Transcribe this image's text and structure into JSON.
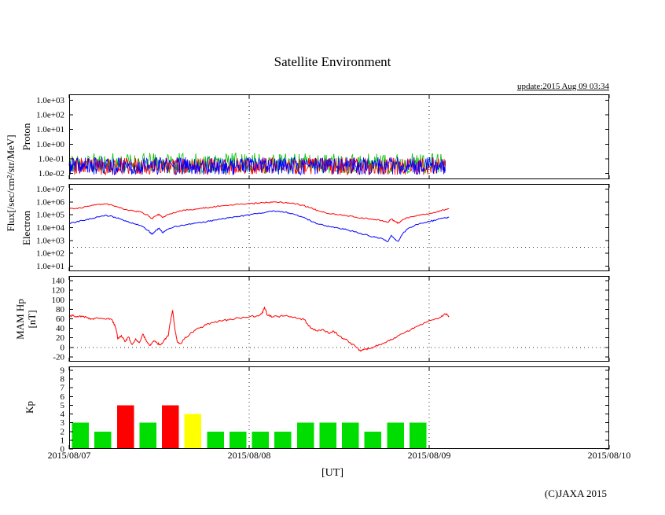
{
  "page": {
    "title": "Satellite Environment",
    "update_label": "update:2015 Aug 09 03:34",
    "copyright": "(C)JAXA 2015",
    "xlabel": "[UT]"
  },
  "axes": {
    "flux_label": "Flux[/sec/cm²/str/MeV]",
    "x_ticks": [
      "2015/08/07",
      "2015/08/08",
      "2015/08/09",
      "2015/08/10"
    ],
    "x_span_days": 3
  },
  "chart_data": [
    {
      "name": "proton",
      "type": "line",
      "ylabel": "Proton",
      "yscale": "log",
      "ylim_exp": [
        -2.4,
        3.4
      ],
      "yticks": [
        {
          "v": 1000,
          "label": "1.0e+03"
        },
        {
          "v": 100,
          "label": "1.0e+02"
        },
        {
          "v": 10,
          "label": "1.0e+01"
        },
        {
          "v": 1,
          "label": "1.0e+00"
        },
        {
          "v": 0.1,
          "label": "1.0e-01"
        },
        {
          "v": 0.01,
          "label": "1.0e-02"
        }
      ],
      "vgrid_days": [
        1,
        2
      ],
      "hgrid": [],
      "series": [
        {
          "name": "proton-green-channel",
          "color": "#00c000",
          "noise": {
            "t_range": [
              0,
              2.09
            ],
            "v_range": [
              0.01,
              0.25
            ],
            "n": 500,
            "seed": 11
          }
        },
        {
          "name": "proton-red-channel",
          "color": "#ff0000",
          "noise": {
            "t_range": [
              0,
              2.09
            ],
            "v_range": [
              0.008,
              0.12
            ],
            "n": 620,
            "seed": 23
          }
        },
        {
          "name": "proton-blue-channel",
          "color": "#0000ff",
          "noise": {
            "t_range": [
              0,
              2.09
            ],
            "v_range": [
              0.008,
              0.13
            ],
            "n": 700,
            "seed": 37
          }
        }
      ]
    },
    {
      "name": "electron",
      "type": "line",
      "ylabel": "Electron",
      "yscale": "log",
      "ylim_exp": [
        0.6,
        7.4
      ],
      "yticks": [
        {
          "v": 10000000.0,
          "label": "1.0e+07"
        },
        {
          "v": 1000000.0,
          "label": "1.0e+06"
        },
        {
          "v": 100000.0,
          "label": "1.0e+05"
        },
        {
          "v": 10000.0,
          "label": "1.0e+04"
        },
        {
          "v": 1000.0,
          "label": "1.0e+03"
        },
        {
          "v": 100.0,
          "label": "1.0e+02"
        },
        {
          "v": 10,
          "label": "1.0e+01"
        }
      ],
      "vgrid_days": [
        1,
        2
      ],
      "hgrid": [
        300
      ],
      "series": [
        {
          "name": "electron-upper",
          "color": "#ff0000",
          "jitter": 0.05,
          "points": [
            [
              0.0,
              280000.0
            ],
            [
              0.04,
              320000.0
            ],
            [
              0.08,
              380000.0
            ],
            [
              0.12,
              500000.0
            ],
            [
              0.16,
              650000.0
            ],
            [
              0.2,
              700000.0
            ],
            [
              0.24,
              550000.0
            ],
            [
              0.28,
              350000.0
            ],
            [
              0.32,
              250000.0
            ],
            [
              0.36,
              200000.0
            ],
            [
              0.4,
              160000.0
            ],
            [
              0.44,
              90000.0
            ],
            [
              0.46,
              50000.0
            ],
            [
              0.48,
              80000.0
            ],
            [
              0.5,
              110000.0
            ],
            [
              0.52,
              60000.0
            ],
            [
              0.54,
              90000.0
            ],
            [
              0.58,
              150000.0
            ],
            [
              0.62,
              200000.0
            ],
            [
              0.66,
              240000.0
            ],
            [
              0.7,
              280000.0
            ],
            [
              0.74,
              320000.0
            ],
            [
              0.78,
              380000.0
            ],
            [
              0.82,
              450000.0
            ],
            [
              0.86,
              520000.0
            ],
            [
              0.9,
              600000.0
            ],
            [
              0.94,
              660000.0
            ],
            [
              0.98,
              700000.0
            ],
            [
              1.02,
              750000.0
            ],
            [
              1.06,
              820000.0
            ],
            [
              1.1,
              900000.0
            ],
            [
              1.14,
              1000000.0
            ],
            [
              1.18,
              950000.0
            ],
            [
              1.22,
              850000.0
            ],
            [
              1.26,
              700000.0
            ],
            [
              1.3,
              550000.0
            ],
            [
              1.34,
              350000.0
            ],
            [
              1.38,
              220000.0
            ],
            [
              1.42,
              150000.0
            ],
            [
              1.46,
              120000.0
            ],
            [
              1.5,
              100000.0
            ],
            [
              1.54,
              85000.0
            ],
            [
              1.58,
              70000.0
            ],
            [
              1.62,
              55000.0
            ],
            [
              1.66,
              50000.0
            ],
            [
              1.7,
              42000.0
            ],
            [
              1.74,
              36000.0
            ],
            [
              1.77,
              26000.0
            ],
            [
              1.79,
              45000.0
            ],
            [
              1.81,
              30000.0
            ],
            [
              1.83,
              22000.0
            ],
            [
              1.85,
              40000.0
            ],
            [
              1.88,
              60000.0
            ],
            [
              1.92,
              80000.0
            ],
            [
              1.96,
              100000.0
            ],
            [
              2.0,
              120000.0
            ],
            [
              2.04,
              160000.0
            ],
            [
              2.08,
              240000.0
            ],
            [
              2.11,
              300000.0
            ]
          ]
        },
        {
          "name": "electron-lower",
          "color": "#0000ff",
          "jitter": 0.05,
          "points": [
            [
              0.0,
              22000.0
            ],
            [
              0.04,
              28000.0
            ],
            [
              0.08,
              36000.0
            ],
            [
              0.12,
              50000.0
            ],
            [
              0.16,
              70000.0
            ],
            [
              0.2,
              90000.0
            ],
            [
              0.24,
              75000.0
            ],
            [
              0.28,
              50000.0
            ],
            [
              0.32,
              30000.0
            ],
            [
              0.36,
              20000.0
            ],
            [
              0.4,
              14000.0
            ],
            [
              0.44,
              6000.0
            ],
            [
              0.46,
              3000.0
            ],
            [
              0.48,
              6000.0
            ],
            [
              0.5,
              9000.0
            ],
            [
              0.52,
              4000.0
            ],
            [
              0.54,
              7000.0
            ],
            [
              0.58,
              11000.0
            ],
            [
              0.62,
              15000.0
            ],
            [
              0.66,
              18000.0
            ],
            [
              0.7,
              22000.0
            ],
            [
              0.74,
              26000.0
            ],
            [
              0.78,
              32000.0
            ],
            [
              0.82,
              40000.0
            ],
            [
              0.86,
              50000.0
            ],
            [
              0.9,
              60000.0
            ],
            [
              0.94,
              75000.0
            ],
            [
              0.98,
              90000.0
            ],
            [
              1.02,
              110000.0
            ],
            [
              1.06,
              130000.0
            ],
            [
              1.1,
              160000.0
            ],
            [
              1.14,
              200000.0
            ],
            [
              1.18,
              180000.0
            ],
            [
              1.22,
              140000.0
            ],
            [
              1.26,
              100000.0
            ],
            [
              1.3,
              65000.0
            ],
            [
              1.34,
              35000.0
            ],
            [
              1.38,
              20000.0
            ],
            [
              1.42,
              14000.0
            ],
            [
              1.46,
              11000.0
            ],
            [
              1.5,
              9000.0
            ],
            [
              1.54,
              7000.0
            ],
            [
              1.58,
              5000.0
            ],
            [
              1.62,
              3500.0
            ],
            [
              1.66,
              2500.0
            ],
            [
              1.7,
              1800.0
            ],
            [
              1.74,
              1400.0
            ],
            [
              1.77,
              800.0
            ],
            [
              1.79,
              2500.0
            ],
            [
              1.81,
              1200.0
            ],
            [
              1.83,
              900.0
            ],
            [
              1.85,
              3000.0
            ],
            [
              1.88,
              8000.0
            ],
            [
              1.92,
              15000.0
            ],
            [
              1.96,
              22000.0
            ],
            [
              2.0,
              30000.0
            ],
            [
              2.04,
              40000.0
            ],
            [
              2.08,
              55000.0
            ],
            [
              2.11,
              65000.0
            ]
          ]
        }
      ]
    },
    {
      "name": "mam-hp",
      "type": "line",
      "ylabel": "MAM Hp",
      "ylabel2": "[nT]",
      "yscale": "linear",
      "ylim": [
        -30,
        150
      ],
      "yticks": [
        {
          "v": 140,
          "label": "140"
        },
        {
          "v": 120,
          "label": "120"
        },
        {
          "v": 100,
          "label": "100"
        },
        {
          "v": 80,
          "label": "80"
        },
        {
          "v": 60,
          "label": "60"
        },
        {
          "v": 40,
          "label": "40"
        },
        {
          "v": 20,
          "label": "20"
        },
        {
          "v": 0,
          "label": "0"
        },
        {
          "v": -20,
          "label": "-20"
        }
      ],
      "vgrid_days": [
        1,
        2
      ],
      "hgrid": [
        0
      ],
      "series": [
        {
          "name": "mam-hp-field",
          "color": "#ff0000",
          "jitter": 2,
          "points": [
            [
              0.0,
              65
            ],
            [
              0.02,
              67
            ],
            [
              0.04,
              64
            ],
            [
              0.07,
              66
            ],
            [
              0.1,
              62
            ],
            [
              0.13,
              60
            ],
            [
              0.16,
              62
            ],
            [
              0.19,
              60
            ],
            [
              0.22,
              61
            ],
            [
              0.24,
              57
            ],
            [
              0.26,
              40
            ],
            [
              0.27,
              18
            ],
            [
              0.29,
              25
            ],
            [
              0.31,
              12
            ],
            [
              0.33,
              22
            ],
            [
              0.35,
              6
            ],
            [
              0.37,
              18
            ],
            [
              0.39,
              10
            ],
            [
              0.41,
              28
            ],
            [
              0.43,
              12
            ],
            [
              0.45,
              4
            ],
            [
              0.47,
              14
            ],
            [
              0.49,
              8
            ],
            [
              0.51,
              6
            ],
            [
              0.53,
              16
            ],
            [
              0.55,
              24
            ],
            [
              0.565,
              60
            ],
            [
              0.575,
              78
            ],
            [
              0.585,
              45
            ],
            [
              0.6,
              12
            ],
            [
              0.62,
              8
            ],
            [
              0.64,
              18
            ],
            [
              0.67,
              28
            ],
            [
              0.7,
              36
            ],
            [
              0.73,
              42
            ],
            [
              0.76,
              47
            ],
            [
              0.8,
              52
            ],
            [
              0.84,
              56
            ],
            [
              0.88,
              58
            ],
            [
              0.92,
              60
            ],
            [
              0.96,
              62
            ],
            [
              1.0,
              64
            ],
            [
              1.04,
              66
            ],
            [
              1.07,
              70
            ],
            [
              1.085,
              85
            ],
            [
              1.1,
              68
            ],
            [
              1.13,
              64
            ],
            [
              1.16,
              65
            ],
            [
              1.2,
              66
            ],
            [
              1.24,
              63
            ],
            [
              1.28,
              61
            ],
            [
              1.31,
              58
            ],
            [
              1.33,
              45
            ],
            [
              1.35,
              40
            ],
            [
              1.38,
              34
            ],
            [
              1.41,
              38
            ],
            [
              1.44,
              30
            ],
            [
              1.47,
              34
            ],
            [
              1.5,
              24
            ],
            [
              1.53,
              18
            ],
            [
              1.56,
              10
            ],
            [
              1.59,
              2
            ],
            [
              1.62,
              -8
            ],
            [
              1.64,
              -4
            ],
            [
              1.67,
              -2
            ],
            [
              1.7,
              2
            ],
            [
              1.74,
              8
            ],
            [
              1.78,
              14
            ],
            [
              1.82,
              22
            ],
            [
              1.86,
              30
            ],
            [
              1.9,
              38
            ],
            [
              1.94,
              45
            ],
            [
              1.98,
              52
            ],
            [
              2.02,
              58
            ],
            [
              2.06,
              63
            ],
            [
              2.09,
              70
            ],
            [
              2.11,
              66
            ]
          ]
        }
      ]
    },
    {
      "name": "kp",
      "type": "bar",
      "ylabel": "Kp",
      "yscale": "linear",
      "ylim": [
        0,
        9.45
      ],
      "yticks": [
        {
          "v": 9,
          "label": "9"
        },
        {
          "v": 8,
          "label": "8"
        },
        {
          "v": 7,
          "label": "7"
        },
        {
          "v": 6,
          "label": "6"
        },
        {
          "v": 5,
          "label": "5"
        },
        {
          "v": 4,
          "label": "4"
        },
        {
          "v": 3,
          "label": "3"
        },
        {
          "v": 2,
          "label": "2"
        },
        {
          "v": 1,
          "label": "1"
        },
        {
          "v": 0,
          "label": "0"
        }
      ],
      "vgrid_days": [
        1,
        2
      ],
      "hgrid": [],
      "bar_hours": 3,
      "values": [
        3,
        2,
        5,
        3,
        5,
        4,
        2,
        2,
        2,
        2,
        3,
        3,
        3,
        2,
        3,
        3
      ],
      "color_rules": {
        "green": "#00dd00",
        "yellow": "#ffff00",
        "red": "#ff0000",
        "yellow_min": 4,
        "red_min": 5
      }
    }
  ]
}
